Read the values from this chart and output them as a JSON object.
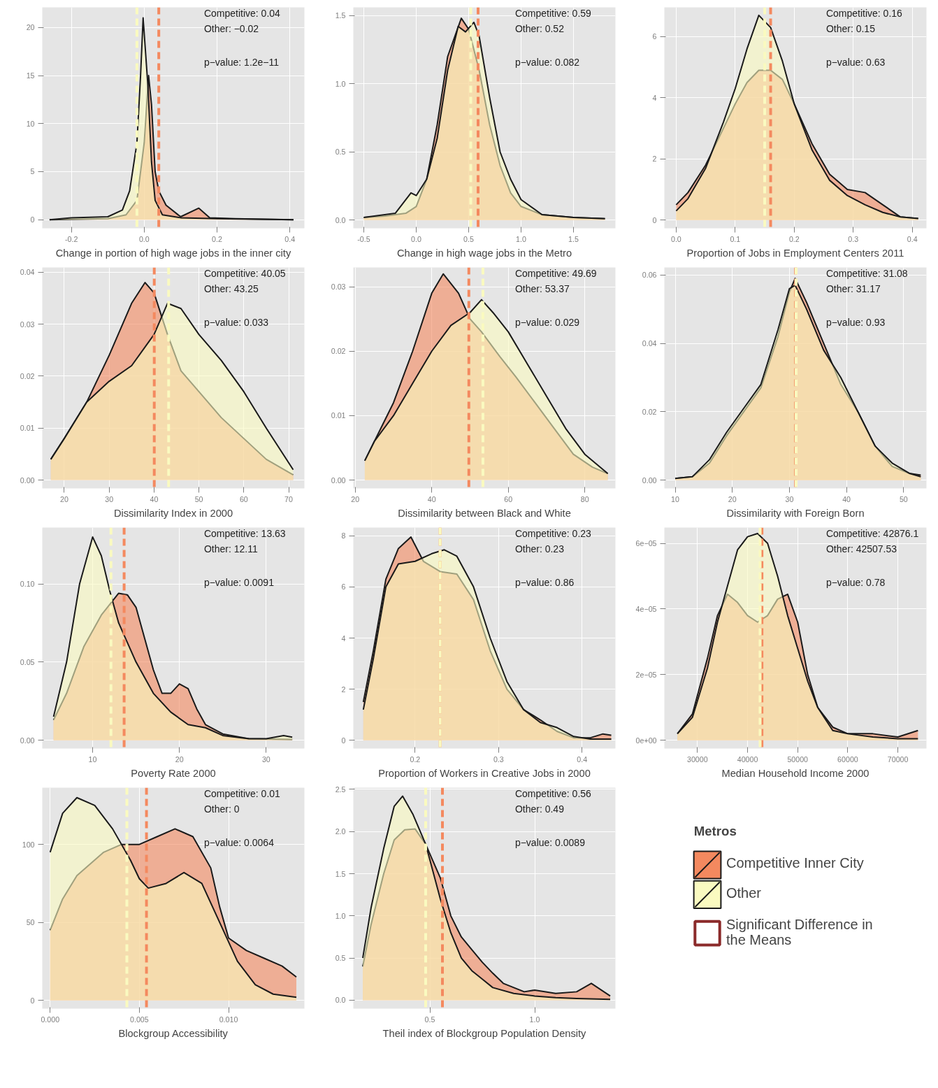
{
  "chart_data": [
    {
      "type": "area",
      "xlabel": "Change in portion of high wage jobs in the inner city",
      "xlim": [
        -0.28,
        0.44
      ],
      "ylim": [
        -0.9,
        22.1
      ],
      "xticks": [
        {
          "value": -0.2,
          "label": "-0.2"
        },
        {
          "value": 0,
          "label": "0.0"
        },
        {
          "value": 0.2,
          "label": "0.2"
        },
        {
          "value": 0.4,
          "label": "0.4"
        }
      ],
      "yticks": [
        0,
        5,
        10,
        15,
        20
      ],
      "grid": true,
      "series": [
        {
          "color": "#f4895f",
          "x": [
            -0.26,
            -0.1,
            -0.05,
            -0.02,
            0,
            0.012,
            0.02,
            0.03,
            0.04,
            0.06,
            0.1,
            0.15,
            0.18,
            0.25,
            0.41
          ],
          "values": [
            0,
            0.1,
            0.5,
            2,
            8,
            15,
            12,
            5,
            3,
            1.5,
            0.3,
            1.2,
            0.2,
            0.1,
            0
          ]
        },
        {
          "color": "#fafac0",
          "x": [
            -0.26,
            -0.2,
            -0.1,
            -0.06,
            -0.04,
            -0.02,
            -0.01,
            -0.003,
            0.01,
            0.02,
            0.03,
            0.05,
            0.1,
            0.2,
            0.41
          ],
          "values": [
            0,
            0.2,
            0.3,
            1,
            3,
            8,
            15,
            21,
            14,
            6,
            2,
            0.5,
            0.2,
            0.1,
            0
          ]
        }
      ],
      "ref_lines": [
        {
          "axis": "x",
          "value": 0.04,
          "color": "#f4895f",
          "line_style": "dashed"
        },
        {
          "axis": "x",
          "value": -0.02,
          "color": "#fafac0",
          "line_style": "dashed"
        }
      ],
      "annotations": [
        "Competitive: 0.04",
        "Other: −0.02",
        "p−value: 1.2e−11"
      ]
    },
    {
      "type": "area",
      "xlabel": "Change in high wage jobs in the Metro",
      "xlim": [
        -0.6,
        1.9
      ],
      "ylim": [
        -0.06,
        1.56
      ],
      "xticks": [
        {
          "value": -0.5,
          "label": "-0.5"
        },
        {
          "value": 0,
          "label": "0.0"
        },
        0.5,
        {
          "value": 1,
          "label": "1.0"
        },
        1.5
      ],
      "yticks": [
        {
          "value": 0,
          "label": "0.0"
        },
        0.5,
        {
          "value": 1,
          "label": "1.0"
        },
        1.5
      ],
      "grid": true,
      "series": [
        {
          "color": "#f4895f",
          "x": [
            -0.5,
            -0.3,
            -0.1,
            0,
            0.1,
            0.2,
            0.3,
            0.43,
            0.5,
            0.6,
            0.7,
            0.8,
            0.9,
            1.0,
            1.2,
            1.5,
            1.8
          ],
          "values": [
            0.02,
            0.03,
            0.05,
            0.1,
            0.3,
            0.7,
            1.2,
            1.48,
            1.4,
            1.1,
            0.7,
            0.4,
            0.2,
            0.1,
            0.04,
            0.02,
            0.01
          ]
        },
        {
          "color": "#fafac0",
          "x": [
            -0.5,
            -0.2,
            -0.05,
            0,
            0.1,
            0.2,
            0.3,
            0.4,
            0.47,
            0.55,
            0.6,
            0.7,
            0.8,
            0.9,
            1.0,
            1.2,
            1.5,
            1.8
          ],
          "values": [
            0.02,
            0.05,
            0.2,
            0.18,
            0.3,
            0.6,
            1.1,
            1.42,
            1.38,
            1.45,
            1.35,
            0.9,
            0.5,
            0.3,
            0.15,
            0.04,
            0.02,
            0.01
          ]
        }
      ],
      "ref_lines": [
        {
          "axis": "x",
          "value": 0.59,
          "color": "#f4895f",
          "line_style": "dashed"
        },
        {
          "axis": "x",
          "value": 0.52,
          "color": "#fafac0",
          "line_style": "dashed"
        }
      ],
      "annotations": [
        "Competitive: 0.59",
        "Other: 0.52",
        "p−value: 0.082"
      ]
    },
    {
      "type": "area",
      "xlabel": "Proportion of Jobs in Employment Centers 2011",
      "xlim": [
        -0.02,
        0.424
      ],
      "ylim": [
        -0.27,
        6.96
      ],
      "xticks": [
        {
          "value": 0,
          "label": "0.0"
        },
        0.1,
        0.2,
        0.3,
        0.4
      ],
      "yticks": [
        0,
        2,
        4,
        6
      ],
      "grid": true,
      "series": [
        {
          "color": "#f4895f",
          "x": [
            0,
            0.02,
            0.05,
            0.08,
            0.1,
            0.12,
            0.14,
            0.16,
            0.18,
            0.2,
            0.23,
            0.26,
            0.29,
            0.32,
            0.35,
            0.38,
            0.41
          ],
          "values": [
            0.5,
            0.9,
            1.8,
            3.0,
            3.8,
            4.5,
            4.9,
            4.9,
            4.6,
            3.8,
            2.5,
            1.5,
            1.0,
            0.9,
            0.5,
            0.1,
            0.05
          ]
        },
        {
          "color": "#fafac0",
          "x": [
            0,
            0.02,
            0.05,
            0.08,
            0.1,
            0.12,
            0.14,
            0.16,
            0.18,
            0.2,
            0.23,
            0.26,
            0.29,
            0.32,
            0.35,
            0.38,
            0.41
          ],
          "values": [
            0.3,
            0.7,
            1.7,
            3.2,
            4.3,
            5.6,
            6.7,
            6.3,
            5.2,
            3.8,
            2.3,
            1.3,
            0.8,
            0.5,
            0.25,
            0.1,
            0.05
          ]
        }
      ],
      "ref_lines": [
        {
          "axis": "x",
          "value": 0.16,
          "color": "#f4895f",
          "line_style": "dashed"
        },
        {
          "axis": "x",
          "value": 0.15,
          "color": "#fafac0",
          "line_style": "dashed"
        }
      ],
      "annotations": [
        "Competitive: 0.16",
        "Other: 0.15",
        "p−value: 0.63"
      ]
    },
    {
      "type": "area",
      "xlabel": "Dissimilarity Index in 2000",
      "xlim": [
        15.1,
        73.5
      ],
      "ylim": [
        -0.0016,
        0.0409
      ],
      "xticks": [
        20,
        30,
        40,
        50,
        60,
        70
      ],
      "yticks": [
        {
          "value": 0,
          "label": "0.00"
        },
        0.01,
        0.02,
        0.03,
        0.04
      ],
      "grid": true,
      "series": [
        {
          "color": "#f4895f",
          "x": [
            17,
            20,
            25,
            30,
            35,
            38,
            40,
            43,
            46,
            50,
            55,
            60,
            65,
            71
          ],
          "values": [
            0.004,
            0.008,
            0.015,
            0.024,
            0.034,
            0.038,
            0.036,
            0.028,
            0.021,
            0.017,
            0.012,
            0.008,
            0.004,
            0.001
          ]
        },
        {
          "color": "#fafac0",
          "x": [
            17,
            20,
            25,
            30,
            35,
            40,
            43,
            46,
            50,
            55,
            60,
            65,
            71
          ],
          "values": [
            0.004,
            0.008,
            0.015,
            0.019,
            0.022,
            0.028,
            0.034,
            0.033,
            0.028,
            0.023,
            0.017,
            0.01,
            0.002
          ]
        }
      ],
      "ref_lines": [
        {
          "axis": "x",
          "value": 40.05,
          "color": "#f4895f",
          "line_style": "dashed"
        },
        {
          "axis": "x",
          "value": 43.25,
          "color": "#fafac0",
          "line_style": "dashed"
        }
      ],
      "annotations": [
        "Competitive: 40.05",
        "Other: 43.25",
        "p−value: 0.033"
      ]
    },
    {
      "type": "area",
      "xlabel": "Dissimilarity between Black and White",
      "xlim": [
        19.5,
        88
      ],
      "ylim": [
        -0.0013,
        0.033
      ],
      "xticks": [
        20,
        40,
        60,
        80
      ],
      "yticks": [
        {
          "value": 0,
          "label": "0.00"
        },
        0.01,
        0.02,
        0.03
      ],
      "grid": true,
      "series": [
        {
          "color": "#f4895f",
          "x": [
            22.5,
            25,
            30,
            35,
            40,
            43,
            47,
            50,
            53,
            58,
            62,
            67,
            72,
            77,
            82,
            86
          ],
          "values": [
            0.003,
            0.006,
            0.012,
            0.02,
            0.029,
            0.032,
            0.029,
            0.025,
            0.023,
            0.019,
            0.016,
            0.012,
            0.008,
            0.004,
            0.002,
            0.001
          ]
        },
        {
          "color": "#fafac0",
          "x": [
            22.5,
            25,
            30,
            35,
            40,
            45,
            50,
            53,
            56,
            60,
            65,
            70,
            75,
            80,
            86
          ],
          "values": [
            0.003,
            0.006,
            0.01,
            0.015,
            0.02,
            0.024,
            0.026,
            0.028,
            0.026,
            0.023,
            0.018,
            0.013,
            0.008,
            0.004,
            0.001
          ]
        }
      ],
      "ref_lines": [
        {
          "axis": "x",
          "value": 49.69,
          "color": "#f4895f",
          "line_style": "dashed"
        },
        {
          "axis": "x",
          "value": 53.37,
          "color": "#fafac0",
          "line_style": "dashed"
        }
      ],
      "annotations": [
        "Competitive: 49.69",
        "Other: 53.37",
        "p−value: 0.029"
      ]
    },
    {
      "type": "area",
      "xlabel": "Dissimilarity with Foreign Born",
      "xlim": [
        8.1,
        54
      ],
      "ylim": [
        -0.0024,
        0.0622
      ],
      "xticks": [
        10,
        20,
        30,
        40,
        50
      ],
      "yticks": [
        {
          "value": 0,
          "label": "0.00"
        },
        0.02,
        0.04,
        0.06
      ],
      "grid": true,
      "series": [
        {
          "color": "#f4895f",
          "x": [
            10,
            13,
            16,
            19,
            22,
            25,
            28,
            30,
            31,
            33,
            36,
            39,
            42,
            45,
            48,
            51,
            53
          ],
          "values": [
            0.0005,
            0.001,
            0.005,
            0.013,
            0.02,
            0.027,
            0.042,
            0.055,
            0.059,
            0.052,
            0.04,
            0.028,
            0.02,
            0.01,
            0.004,
            0.002,
            0.0015
          ]
        },
        {
          "color": "#fafac0",
          "x": [
            10,
            13,
            16,
            19,
            22,
            25,
            28,
            30,
            31,
            33,
            36,
            39,
            42,
            45,
            48,
            51,
            53
          ],
          "values": [
            0.0005,
            0.001,
            0.006,
            0.014,
            0.021,
            0.028,
            0.044,
            0.056,
            0.057,
            0.05,
            0.038,
            0.03,
            0.02,
            0.01,
            0.005,
            0.002,
            0.001
          ]
        }
      ],
      "ref_lines": [
        {
          "axis": "x",
          "value": 31.08,
          "color": "#f4895f",
          "line_style": "dashed"
        },
        {
          "axis": "x",
          "value": 31.17,
          "color": "#fafac0",
          "line_style": "dashed"
        }
      ],
      "annotations": [
        "Competitive: 31.08",
        "Other: 31.17",
        "p−value: 0.93"
      ]
    },
    {
      "type": "area",
      "xlabel": "Poverty Rate 2000",
      "xlim": [
        4.2,
        34.4
      ],
      "ylim": [
        -0.0053,
        0.136
      ],
      "xticks": [
        10,
        20,
        30
      ],
      "yticks": [
        {
          "value": 0,
          "label": "0.00"
        },
        {
          "value": 0.05,
          "label": "0.05"
        },
        {
          "value": 0.1,
          "label": "0.10"
        }
      ],
      "grid": true,
      "series": [
        {
          "color": "#f4895f",
          "x": [
            5.5,
            7,
            9,
            11,
            13,
            14,
            15,
            16,
            17,
            18,
            19,
            20,
            21,
            22,
            23,
            25,
            28,
            33
          ],
          "values": [
            0.013,
            0.03,
            0.06,
            0.08,
            0.094,
            0.093,
            0.085,
            0.065,
            0.045,
            0.03,
            0.03,
            0.036,
            0.033,
            0.02,
            0.01,
            0.004,
            0.001,
            0.0005
          ]
        },
        {
          "color": "#fafac0",
          "x": [
            5.5,
            7,
            8.5,
            10,
            11,
            12,
            13,
            15,
            17,
            19,
            21,
            23,
            25,
            28,
            30,
            32,
            33
          ],
          "values": [
            0.015,
            0.05,
            0.1,
            0.13,
            0.118,
            0.095,
            0.075,
            0.05,
            0.03,
            0.018,
            0.01,
            0.008,
            0.003,
            0.001,
            0.001,
            0.003,
            0.002
          ]
        }
      ],
      "ref_lines": [
        {
          "axis": "x",
          "value": 13.63,
          "color": "#f4895f",
          "line_style": "dashed"
        },
        {
          "axis": "x",
          "value": 12.11,
          "color": "#fafac0",
          "line_style": "dashed"
        }
      ],
      "annotations": [
        "Competitive: 13.63",
        "Other: 12.11",
        "p−value: 0.0091"
      ]
    },
    {
      "type": "area",
      "xlabel": "Proportion of Workers in Creative Jobs in 2000",
      "xlim": [
        0.126,
        0.44
      ],
      "ylim": [
        -0.32,
        8.32
      ],
      "xticks": [
        0.2,
        0.3,
        0.4
      ],
      "yticks": [
        0,
        2,
        4,
        6,
        8
      ],
      "grid": true,
      "series": [
        {
          "color": "#f4895f",
          "x": [
            0.138,
            0.15,
            0.165,
            0.18,
            0.195,
            0.21,
            0.23,
            0.25,
            0.27,
            0.29,
            0.31,
            0.33,
            0.35,
            0.37,
            0.39,
            0.41,
            0.425,
            0.435
          ],
          "values": [
            1.5,
            3.5,
            6.3,
            7.5,
            7.95,
            7.0,
            6.6,
            6.5,
            5.5,
            3.5,
            2.0,
            1.2,
            0.8,
            0.35,
            0.1,
            0.1,
            0.25,
            0.2
          ]
        },
        {
          "color": "#fafac0",
          "x": [
            0.138,
            0.15,
            0.165,
            0.18,
            0.2,
            0.22,
            0.235,
            0.25,
            0.27,
            0.29,
            0.31,
            0.33,
            0.35,
            0.37,
            0.39,
            0.41,
            0.435
          ],
          "values": [
            1.2,
            3.2,
            6.0,
            6.9,
            7.0,
            7.3,
            7.45,
            7.2,
            6.0,
            4.0,
            2.3,
            1.2,
            0.7,
            0.5,
            0.15,
            0.05,
            0.05
          ]
        }
      ],
      "ref_lines": [
        {
          "axis": "x",
          "value": 0.23,
          "color": "#f4895f",
          "line_style": "dashed"
        },
        {
          "axis": "x",
          "value": 0.23,
          "color": "#fafac0",
          "line_style": "dashed"
        }
      ],
      "annotations": [
        "Competitive: 0.23",
        "Other: 0.23",
        "p−value: 0.86"
      ]
    },
    {
      "type": "area",
      "xlabel": "Median Household Income 2000",
      "xlim": [
        23400,
        75700
      ],
      "ylim": [
        -2.5e-06,
        6.48e-05
      ],
      "xticks": [
        30000,
        40000,
        50000,
        60000,
        70000
      ],
      "yticks": [
        {
          "value": 0,
          "label": "0e+00"
        },
        {
          "value": 2e-05,
          "label": "2e−05"
        },
        {
          "value": 4e-05,
          "label": "4e−05"
        },
        {
          "value": 6e-05,
          "label": "6e−05"
        }
      ],
      "grid": true,
      "series": [
        {
          "color": "#f4895f",
          "x": [
            26000,
            29000,
            32000,
            34000,
            36000,
            38000,
            40000,
            42000,
            44000,
            46000,
            48000,
            50000,
            52000,
            54000,
            57000,
            60000,
            65000,
            70000,
            74000
          ],
          "values": [
            2e-06,
            8e-06,
            2.5e-05,
            3.8e-05,
            4.45e-05,
            4.2e-05,
            3.8e-05,
            3.6e-05,
            3.8e-05,
            4.3e-05,
            4.45e-05,
            3.6e-05,
            2e-05,
            1e-05,
            4e-06,
            2e-06,
            2e-06,
            1e-06,
            3e-06
          ]
        },
        {
          "color": "#fafac0",
          "x": [
            26000,
            29000,
            32000,
            34000,
            36000,
            38000,
            40000,
            42000,
            44000,
            46000,
            48000,
            50000,
            52000,
            54000,
            57000,
            60000,
            65000,
            70000,
            74000
          ],
          "values": [
            2e-06,
            7e-06,
            2.2e-05,
            3.6e-05,
            4.7e-05,
            5.8e-05,
            6.2e-05,
            6.3e-05,
            6e-05,
            5e-05,
            3.8e-05,
            2.8e-05,
            1.8e-05,
            1e-05,
            3e-06,
            2e-06,
            1e-06,
            5e-07,
            5e-07
          ]
        }
      ],
      "ref_lines": [
        {
          "axis": "x",
          "value": 42876.1,
          "color": "#f4895f",
          "line_style": "dashed"
        },
        {
          "axis": "x",
          "value": 42507.53,
          "color": "#fafac0",
          "line_style": "dashed"
        }
      ],
      "annotations": [
        "Competitive: 42876.1",
        "Other: 42507.53",
        "p−value: 0.78"
      ]
    },
    {
      "type": "area",
      "xlabel": "Blockgroup Accessibility",
      "xlim": [
        -0.00044,
        0.01425
      ],
      "ylim": [
        -5.3,
        136.4
      ],
      "xticks": [
        {
          "value": 0,
          "label": "0.000"
        },
        {
          "value": 0.005,
          "label": "0.005"
        },
        {
          "value": 0.01,
          "label": "0.010"
        }
      ],
      "yticks": [
        0,
        50,
        100
      ],
      "grid": true,
      "series": [
        {
          "color": "#f4895f",
          "x": [
            0,
            0.0007,
            0.0015,
            0.003,
            0.004,
            0.005,
            0.006,
            0.007,
            0.008,
            0.009,
            0.0095,
            0.01,
            0.011,
            0.012,
            0.013,
            0.0138
          ],
          "values": [
            45,
            65,
            80,
            95,
            100,
            100,
            105,
            110,
            105,
            85,
            60,
            40,
            32,
            27,
            22,
            15
          ]
        },
        {
          "color": "#fafac0",
          "x": [
            0,
            0.0007,
            0.0015,
            0.0025,
            0.0035,
            0.0045,
            0.005,
            0.0055,
            0.0065,
            0.0075,
            0.0085,
            0.0095,
            0.0105,
            0.0115,
            0.0125,
            0.0138
          ],
          "values": [
            95,
            120,
            130,
            125,
            110,
            90,
            78,
            72,
            75,
            82,
            75,
            50,
            25,
            10,
            4,
            2
          ]
        }
      ],
      "ref_lines": [
        {
          "axis": "x",
          "value": 0.0054,
          "color": "#f4895f",
          "line_style": "dashed"
        },
        {
          "axis": "x",
          "value": 0.0043,
          "color": "#fafac0",
          "line_style": "dashed"
        }
      ],
      "annotations": [
        "Competitive: 0.01",
        "Other: 0",
        "p−value: 0.0064"
      ]
    },
    {
      "type": "area",
      "xlabel": "Theil index of Blockgroup Population Density",
      "xlim": [
        0.135,
        1.385
      ],
      "ylim": [
        -0.1,
        2.52
      ],
      "xticks": [
        0.5,
        {
          "value": 1,
          "label": "1.0"
        }
      ],
      "yticks": [
        {
          "value": 0,
          "label": "0.0"
        },
        0.5,
        {
          "value": 1,
          "label": "1.0"
        },
        1.5,
        {
          "value": 2,
          "label": "2.0"
        },
        2.5
      ],
      "grid": true,
      "series": [
        {
          "color": "#f4895f",
          "x": [
            0.18,
            0.22,
            0.28,
            0.33,
            0.38,
            0.43,
            0.48,
            0.55,
            0.6,
            0.65,
            0.7,
            0.75,
            0.8,
            0.85,
            0.9,
            0.95,
            1.0,
            1.1,
            1.2,
            1.27,
            1.33,
            1.36
          ],
          "values": [
            0.4,
            0.9,
            1.5,
            1.9,
            2.02,
            2.03,
            1.85,
            1.45,
            1.0,
            0.75,
            0.6,
            0.45,
            0.32,
            0.2,
            0.15,
            0.1,
            0.12,
            0.08,
            0.1,
            0.2,
            0.1,
            0.05
          ]
        },
        {
          "color": "#fafac0",
          "x": [
            0.18,
            0.22,
            0.28,
            0.33,
            0.37,
            0.42,
            0.48,
            0.55,
            0.6,
            0.65,
            0.7,
            0.75,
            0.8,
            0.9,
            1.0,
            1.1,
            1.2,
            1.36
          ],
          "values": [
            0.5,
            1.1,
            1.8,
            2.3,
            2.42,
            2.2,
            1.85,
            1.2,
            0.8,
            0.5,
            0.35,
            0.25,
            0.15,
            0.08,
            0.05,
            0.03,
            0.02,
            0.01
          ]
        }
      ],
      "ref_lines": [
        {
          "axis": "x",
          "value": 0.56,
          "color": "#f4895f",
          "line_style": "dashed"
        },
        {
          "axis": "x",
          "value": 0.48,
          "color": "#fafac0",
          "line_style": "dashed"
        }
      ],
      "annotations": [
        "Competitive: 0.56",
        "Other: 0.49",
        "p−value: 0.0089"
      ]
    },
    {
      "type": "other",
      "legend_title": "Metros",
      "series": [
        {
          "name": "Competitive Inner City",
          "color": "#f4895f"
        },
        {
          "name": "Other",
          "color": "#fafac0"
        },
        {
          "name": "Significant Difference in the Means",
          "color": "#8b2a2a"
        }
      ]
    }
  ]
}
